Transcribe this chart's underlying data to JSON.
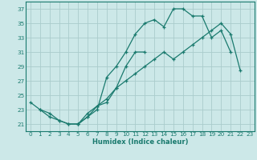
{
  "title": "",
  "xlabel": "Humidex (Indice chaleur)",
  "bg_color": "#cce8e8",
  "grid_color": "#aacccc",
  "line_color": "#1a7a6e",
  "xlim": [
    -0.5,
    23.5
  ],
  "ylim": [
    20.0,
    38.0
  ],
  "yticks": [
    21,
    23,
    25,
    27,
    29,
    31,
    33,
    35,
    37
  ],
  "xticks": [
    0,
    1,
    2,
    3,
    4,
    5,
    6,
    7,
    8,
    9,
    10,
    11,
    12,
    13,
    14,
    15,
    16,
    17,
    18,
    19,
    20,
    21,
    22,
    23
  ],
  "series": [
    {
      "x": [
        0,
        1,
        2,
        3,
        4,
        5,
        6,
        7,
        8,
        9,
        10,
        11,
        12,
        13,
        14,
        15,
        16,
        17,
        18,
        19,
        20,
        21
      ],
      "y": [
        24,
        23,
        22.5,
        21.5,
        21,
        21,
        22,
        23,
        27.5,
        29,
        31,
        33.5,
        35,
        35.5,
        34.5,
        37,
        37,
        36,
        36,
        33,
        34,
        31
      ]
    },
    {
      "x": [
        1,
        2,
        3,
        4,
        5,
        6,
        7,
        8,
        9,
        10,
        11,
        12
      ],
      "y": [
        23,
        22,
        21.5,
        21,
        21,
        22.5,
        23.5,
        24,
        26,
        29,
        31,
        31
      ]
    },
    {
      "x": [
        5,
        6,
        7,
        8,
        9,
        10,
        11,
        12,
        13,
        14,
        15,
        16,
        17,
        18,
        19,
        20,
        21,
        22
      ],
      "y": [
        21,
        22,
        23.5,
        24.5,
        26,
        27,
        28,
        29,
        30,
        31,
        30,
        31,
        32,
        33,
        34,
        35,
        33.5,
        28.5
      ]
    }
  ]
}
